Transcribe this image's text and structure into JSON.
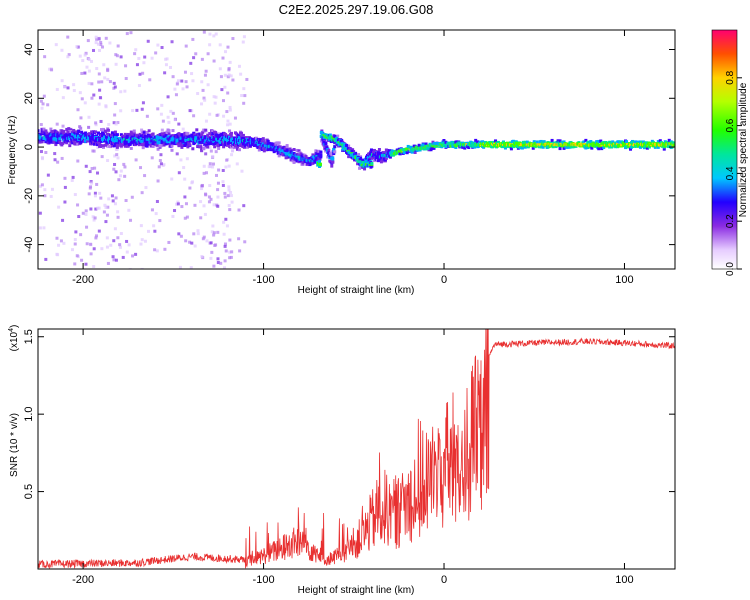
{
  "title": "C2E2.2025.297.19.06.G08",
  "chart_data": [
    {
      "type": "heatmap",
      "name": "spectrogram",
      "xlabel": "Height of straight line (km)",
      "ylabel": "Frequency (Hz)",
      "xlim": [
        -225,
        128
      ],
      "ylim": [
        -50,
        48
      ],
      "xticks": [
        -200,
        -100,
        0,
        100
      ],
      "yticks": [
        -40,
        -20,
        0,
        20,
        40
      ],
      "ridge": [
        {
          "x": -225,
          "y": 4
        },
        {
          "x": -200,
          "y": 4
        },
        {
          "x": -180,
          "y": 3
        },
        {
          "x": -160,
          "y": 3
        },
        {
          "x": -140,
          "y": 3
        },
        {
          "x": -120,
          "y": 3
        },
        {
          "x": -105,
          "y": 2
        },
        {
          "x": -95,
          "y": 0
        },
        {
          "x": -85,
          "y": -3
        },
        {
          "x": -75,
          "y": -6
        },
        {
          "x": -68,
          "y": -3
        },
        {
          "x": -62,
          "y": -6
        },
        {
          "x": -55,
          "y": -10
        },
        {
          "x": -68,
          "y": 5
        },
        {
          "x": -60,
          "y": 3
        },
        {
          "x": -52,
          "y": -2
        },
        {
          "x": -45,
          "y": -7
        },
        {
          "x": -40,
          "y": -3
        },
        {
          "x": -35,
          "y": -4
        },
        {
          "x": -20,
          "y": -1
        },
        {
          "x": 0,
          "y": 1
        },
        {
          "x": 20,
          "y": 1
        },
        {
          "x": 50,
          "y": 1
        },
        {
          "x": 128,
          "y": 1
        }
      ],
      "colorbar": {
        "label": "Normalized spectral amplitude",
        "range": [
          0,
          1
        ],
        "ticks": [
          0.0,
          0.2,
          0.4,
          0.6,
          0.8
        ],
        "tick_labels": [
          "0.0",
          "0.2",
          "0.4",
          "0.6",
          "0.8"
        ]
      }
    },
    {
      "type": "line",
      "name": "snr",
      "xlabel": "Height of straight line (km)",
      "ylabel": "SNR (10 * v/v)",
      "y_multiplier": "(x10",
      "y_multiplier_exp": "4",
      "y_multiplier_close": ")",
      "xlim": [
        -225,
        128
      ],
      "ylim": [
        0,
        1.55
      ],
      "xticks": [
        -200,
        -100,
        0,
        100
      ],
      "yticks": [
        0.5,
        1.0,
        1.5
      ],
      "ytick_labels": [
        "0.5",
        "1.0",
        "1.5"
      ],
      "series_color": "#e83030",
      "envelope": [
        {
          "x": -225,
          "y": 0.03
        },
        {
          "x": -170,
          "y": 0.04
        },
        {
          "x": -140,
          "y": 0.08
        },
        {
          "x": -110,
          "y": 0.06
        },
        {
          "x": -95,
          "y": 0.15
        },
        {
          "x": -80,
          "y": 0.25
        },
        {
          "x": -65,
          "y": 0.08
        },
        {
          "x": -55,
          "y": 0.15
        },
        {
          "x": -45,
          "y": 0.3
        },
        {
          "x": -35,
          "y": 0.55
        },
        {
          "x": -25,
          "y": 0.5
        },
        {
          "x": -15,
          "y": 0.7
        },
        {
          "x": -5,
          "y": 0.85
        },
        {
          "x": 5,
          "y": 0.95
        },
        {
          "x": 15,
          "y": 1.1
        },
        {
          "x": 22,
          "y": 1.3
        },
        {
          "x": 28,
          "y": 1.45
        },
        {
          "x": 50,
          "y": 1.46
        },
        {
          "x": 80,
          "y": 1.47
        },
        {
          "x": 100,
          "y": 1.46
        },
        {
          "x": 128,
          "y": 1.44
        }
      ]
    }
  ]
}
